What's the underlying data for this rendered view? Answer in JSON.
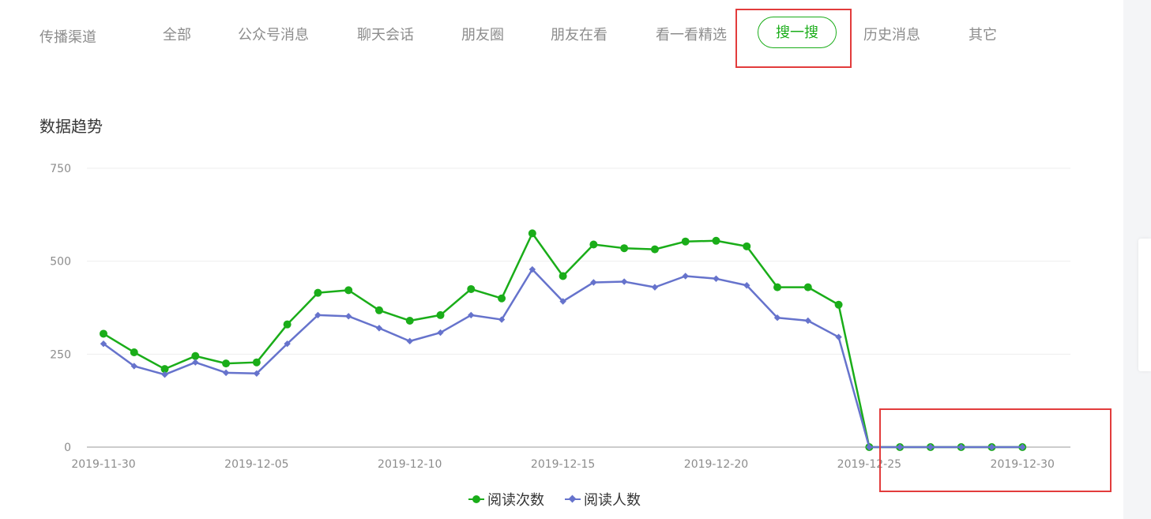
{
  "channel": {
    "label": "传播渠道",
    "tabs": [
      {
        "label": "全部"
      },
      {
        "label": "公众号消息"
      },
      {
        "label": "聊天会话"
      },
      {
        "label": "朋友圈"
      },
      {
        "label": "朋友在看"
      },
      {
        "label": "看一看精选"
      },
      {
        "label": "搜一搜",
        "active": true
      },
      {
        "label": "历史消息"
      },
      {
        "label": "其它"
      }
    ]
  },
  "section_title": "数据趋势",
  "colors": {
    "series1": "#1aad19",
    "series2": "#6673cc",
    "highlight": "#e23c3c",
    "axis": "#cccccc",
    "grid": "#eeeeee",
    "tick_text": "#8c8c8c"
  },
  "chart_data": {
    "type": "line",
    "x_start": "2019-11-30",
    "x_end": "2019-12-31",
    "x_ticks": [
      "2019-11-30",
      "2019-12-05",
      "2019-12-10",
      "2019-12-15",
      "2019-12-20",
      "2019-12-25",
      "2019-12-30"
    ],
    "ylim": [
      0,
      750
    ],
    "y_ticks": [
      0,
      250,
      500,
      750
    ],
    "grid": true,
    "legend_position": "bottom-center",
    "series": [
      {
        "name": "阅读次数",
        "marker": "circle",
        "values": [
          305,
          255,
          210,
          245,
          225,
          228,
          330,
          415,
          422,
          368,
          340,
          355,
          425,
          400,
          575,
          460,
          545,
          535,
          532,
          553,
          555,
          540,
          430,
          430,
          383,
          0,
          0,
          0,
          0,
          0,
          0
        ]
      },
      {
        "name": "阅读人数",
        "marker": "diamond",
        "values": [
          278,
          218,
          195,
          228,
          200,
          198,
          278,
          355,
          352,
          320,
          285,
          308,
          355,
          343,
          478,
          392,
          443,
          445,
          430,
          460,
          453,
          435,
          348,
          340,
          296,
          0,
          0,
          0,
          0,
          0,
          0
        ]
      }
    ]
  }
}
